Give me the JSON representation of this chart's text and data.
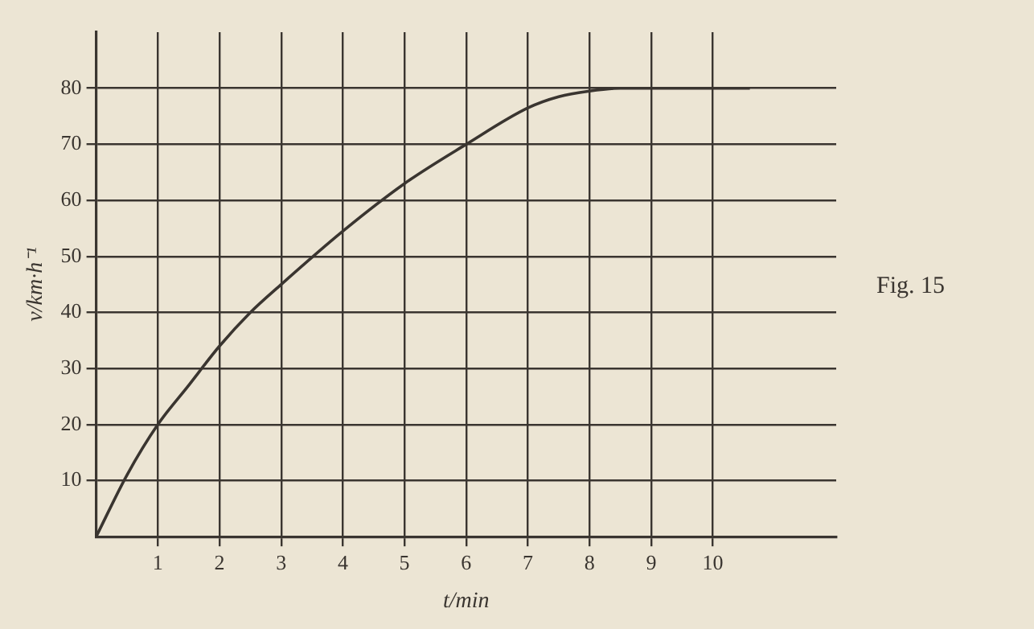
{
  "chart_data": {
    "type": "line",
    "xlabel": "t/min",
    "ylabel": "v/km·h⁻¹",
    "annotations": [
      "Fig. 15"
    ],
    "series": [
      {
        "color": "#3a3530",
        "x": [
          0,
          0.5,
          1,
          1.5,
          2,
          2.5,
          3,
          4,
          5,
          6,
          7,
          7.5,
          8,
          8.5,
          9,
          10,
          10.6
        ],
        "values": [
          0,
          11,
          20,
          27,
          34,
          40,
          45,
          54.5,
          63,
          70,
          76.5,
          78.5,
          79.5,
          80,
          80,
          80,
          80
        ]
      }
    ],
    "xlim": [
      0,
      12
    ],
    "ylim": [
      0,
      90
    ],
    "xticks": [
      1,
      2,
      3,
      4,
      5,
      6,
      7,
      8,
      9,
      10
    ],
    "yticks": [
      10,
      20,
      30,
      40,
      50,
      60,
      70,
      80
    ],
    "grid": true,
    "legend": false,
    "marker": "none",
    "line_style": "solid"
  }
}
